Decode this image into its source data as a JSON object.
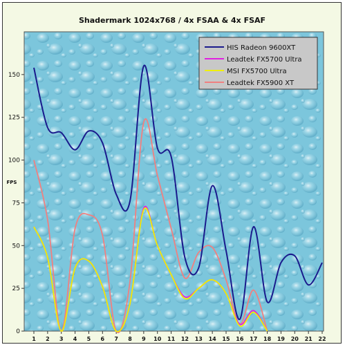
{
  "chart_data": {
    "type": "line",
    "title": "Shadermark 1024x768 / 4x FSAA & 4x FSAF",
    "xlabel": "",
    "ylabel": "FPS",
    "categories": [
      "1",
      "2",
      "3",
      "4",
      "5",
      "6",
      "7",
      "8",
      "9",
      "10",
      "11",
      "12",
      "13",
      "14",
      "15",
      "16",
      "17",
      "18",
      "19",
      "20",
      "21",
      "22"
    ],
    "ylim": [
      0,
      175
    ],
    "yticks": [
      0,
      25,
      50,
      75,
      100,
      125,
      150
    ],
    "ytick_labels": [
      "0",
      "25",
      "50",
      "75",
      "100",
      "125",
      "150"
    ],
    "grid": false,
    "legend_position": "top-right",
    "series": [
      {
        "name": "HIS Radeon 9600XT",
        "color": "#1a1a8c",
        "values": [
          154,
          119,
          116,
          106,
          117,
          110,
          80,
          76,
          155,
          107,
          102,
          43,
          37,
          85,
          47,
          7,
          61,
          17,
          40,
          44,
          27,
          40
        ]
      },
      {
        "name": "Leadtek FX5700 Ultra",
        "color": "#e020e0",
        "values": [
          61,
          43,
          0,
          37,
          41,
          26,
          0,
          16,
          72,
          50,
          33,
          20,
          25,
          30,
          22,
          4,
          12,
          0,
          null,
          null,
          null,
          null
        ]
      },
      {
        "name": "MSI FX5700 Ultra",
        "color": "#f0f000",
        "values": [
          61,
          43,
          0,
          37,
          41,
          26,
          0,
          16,
          71,
          50,
          33,
          19,
          25,
          30,
          22,
          3,
          11,
          0,
          null,
          null,
          null,
          null
        ]
      },
      {
        "name": "Leadtek FX5900 XT",
        "color": "#f08080",
        "values": [
          100,
          65,
          0,
          60,
          68,
          56,
          0,
          29,
          122,
          91,
          60,
          31,
          46,
          49,
          30,
          4,
          24,
          0,
          null,
          null,
          null,
          null
        ]
      }
    ]
  }
}
